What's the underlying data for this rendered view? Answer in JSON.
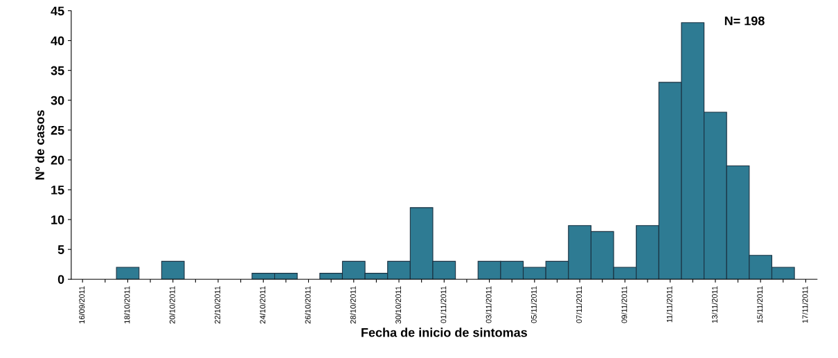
{
  "chart_data": {
    "type": "bar",
    "xlabel": "Fecha de inicio de sintomas",
    "ylabel": "Nº de casos",
    "annotations": [
      "N= 198"
    ],
    "categories": [
      "16/09/2011",
      null,
      "18/10/2011",
      null,
      "20/10/2011",
      null,
      "22/10/2011",
      null,
      "24/10/2011",
      null,
      "26/10/2011",
      null,
      "28/10/2011",
      null,
      "30/10/2011",
      null,
      "01/11/2011",
      null,
      "03/11/2011",
      null,
      "05/11/2011",
      null,
      "07/11/2011",
      null,
      "09/11/2011",
      null,
      "11/11/2011",
      null,
      "13/11/2011",
      null,
      "15/11/2011",
      null,
      "17/11/2011"
    ],
    "values": [
      0,
      0,
      2,
      0,
      3,
      0,
      0,
      0,
      1,
      1,
      0,
      1,
      3,
      1,
      3,
      12,
      3,
      0,
      3,
      3,
      2,
      3,
      9,
      8,
      2,
      9,
      33,
      43,
      28,
      19,
      4,
      2,
      0
    ],
    "color": "#2e7b93",
    "ylim": [
      0,
      45
    ],
    "yticks": [
      0,
      5,
      10,
      15,
      20,
      25,
      30,
      35,
      40,
      45
    ],
    "grid": false,
    "legend": false
  }
}
